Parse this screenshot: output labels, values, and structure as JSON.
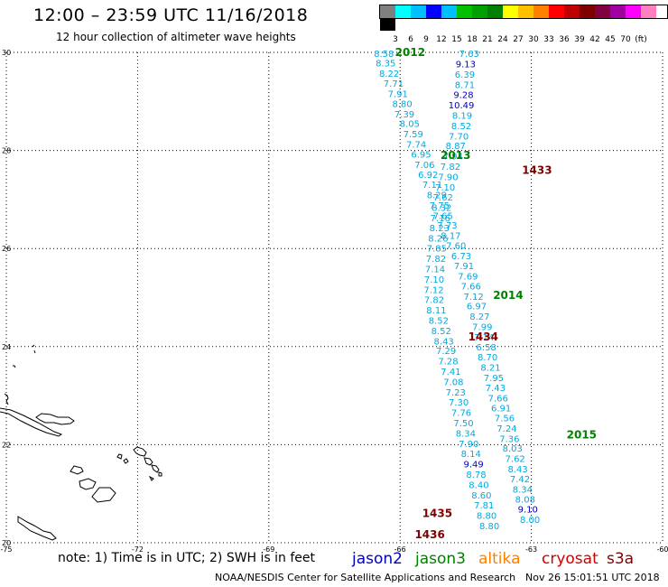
{
  "title": "12:00 – 23:59 UTC 11/16/2018",
  "subtitle": "12 hour collection of altimeter wave heights",
  "colorbar": {
    "colors": [
      "#808080",
      "#00ffff",
      "#00bfff",
      "#0000ff",
      "#00bfff",
      "#00c000",
      "#00a000",
      "#008000",
      "#ffff00",
      "#ffc000",
      "#ff8000",
      "#ff0000",
      "#c00000",
      "#800000",
      "#800040",
      "#a000a0",
      "#ff00ff",
      "#ff80c0",
      "#000000"
    ],
    "labels": [
      "3",
      "6",
      "9",
      "12",
      "15",
      "18",
      "21",
      "24",
      "27",
      "30",
      "33",
      "36",
      "39",
      "42",
      "45",
      "70",
      "(ft)"
    ]
  },
  "axes": {
    "x_labels": [
      "-75",
      "-72",
      "-69",
      "-66",
      "-63",
      "-60"
    ],
    "y_labels": [
      "30",
      "28",
      "26",
      "24",
      "22",
      "20"
    ]
  },
  "note": "note:  1) Time is in UTC;  2) SWH is in feet",
  "satellites": [
    {
      "name": "jason2",
      "color": "#0000c0"
    },
    {
      "name": "jason3",
      "color": "#008000"
    },
    {
      "name": "altika",
      "color": "#ff8000"
    },
    {
      "name": "cryosat",
      "color": "#d00000"
    },
    {
      "name": "s3a",
      "color": "#800000"
    }
  ],
  "credit": "NOAA/NESDIS Center for Satellite Applications and Research",
  "timestamp": "Nov 26 15:01:51 UTC 2018",
  "time_labels": [
    {
      "text": "2012",
      "lon": -65.77,
      "lat": 30.0,
      "color": "#008000"
    },
    {
      "text": "2013",
      "lon": -64.73,
      "lat": 27.9,
      "color": "#008000"
    },
    {
      "text": "1433",
      "lon": -62.87,
      "lat": 27.6,
      "color": "#800000"
    },
    {
      "text": "2014",
      "lon": -63.53,
      "lat": 25.05,
      "color": "#008000"
    },
    {
      "text": "1434",
      "lon": -64.1,
      "lat": 24.2,
      "color": "#800000"
    },
    {
      "text": "2015",
      "lon": -61.85,
      "lat": 22.2,
      "color": "#008000"
    },
    {
      "text": "1435",
      "lon": -65.15,
      "lat": 20.6,
      "color": "#800000"
    },
    {
      "text": "1436",
      "lon": -65.32,
      "lat": 20.17,
      "color": "#800000"
    }
  ],
  "tracks": [
    {
      "satellite": "jason3",
      "points": [
        {
          "v": "8.58",
          "lon": -66.37,
          "lat": 29.98
        },
        {
          "v": "8.35",
          "lon": -66.33,
          "lat": 29.79
        },
        {
          "v": "8.22",
          "lon": -66.25,
          "lat": 29.58
        },
        {
          "v": "7.71",
          "lon": -66.15,
          "lat": 29.37
        },
        {
          "v": "7.91",
          "lon": -66.05,
          "lat": 29.16
        },
        {
          "v": "8.80",
          "lon": -65.95,
          "lat": 28.96
        },
        {
          "v": "7.39",
          "lon": -65.9,
          "lat": 28.75
        },
        {
          "v": "8.05",
          "lon": -65.78,
          "lat": 28.55
        },
        {
          "v": "7.59",
          "lon": -65.7,
          "lat": 28.34
        },
        {
          "v": "7.74",
          "lon": -65.63,
          "lat": 28.13
        },
        {
          "v": "6.95",
          "lon": -65.52,
          "lat": 27.93
        },
        {
          "v": "7.06",
          "lon": -65.44,
          "lat": 27.72
        },
        {
          "v": "6.92",
          "lon": -65.36,
          "lat": 27.51
        },
        {
          "v": "7.11",
          "lon": -65.26,
          "lat": 27.31
        },
        {
          "v": "8.29",
          "lon": -65.16,
          "lat": 27.1
        },
        {
          "v": "7.75",
          "lon": -65.1,
          "lat": 26.89
        },
        {
          "v": "7.65",
          "lon": -65.02,
          "lat": 26.68
        },
        {
          "v": "7.73",
          "lon": -64.92,
          "lat": 26.48
        },
        {
          "v": "8.17",
          "lon": -64.84,
          "lat": 26.27
        },
        {
          "v": "7.60",
          "lon": -64.72,
          "lat": 26.07
        },
        {
          "v": "6.73",
          "lon": -64.6,
          "lat": 25.86
        },
        {
          "v": "7.91",
          "lon": -64.54,
          "lat": 25.65
        },
        {
          "v": "7.69",
          "lon": -64.45,
          "lat": 25.44
        },
        {
          "v": "7.66",
          "lon": -64.38,
          "lat": 25.24
        },
        {
          "v": "7.12",
          "lon": -64.32,
          "lat": 25.03
        },
        {
          "v": "6.97",
          "lon": -64.25,
          "lat": 24.83
        },
        {
          "v": "8.27",
          "lon": -64.18,
          "lat": 24.62
        },
        {
          "v": "7.99",
          "lon": -64.12,
          "lat": 24.41
        },
        {
          "v": "7.14",
          "lon": -64.08,
          "lat": 24.2
        },
        {
          "v": "6.58",
          "lon": -64.03,
          "lat": 24.0
        },
        {
          "v": "8.70",
          "lon": -64.0,
          "lat": 23.79
        },
        {
          "v": "8.21",
          "lon": -63.93,
          "lat": 23.58
        },
        {
          "v": "7.95",
          "lon": -63.86,
          "lat": 23.37
        },
        {
          "v": "7.43",
          "lon": -63.82,
          "lat": 23.17
        },
        {
          "v": "7.66",
          "lon": -63.76,
          "lat": 22.96
        },
        {
          "v": "6.91",
          "lon": -63.69,
          "lat": 22.75
        },
        {
          "v": "7.56",
          "lon": -63.61,
          "lat": 22.55
        },
        {
          "v": "7.24",
          "lon": -63.56,
          "lat": 22.34
        },
        {
          "v": "7.36",
          "lon": -63.5,
          "lat": 22.13
        },
        {
          "v": "8.03",
          "lon": -63.43,
          "lat": 21.93
        },
        {
          "v": "7.62",
          "lon": -63.37,
          "lat": 21.72
        },
        {
          "v": "8.43",
          "lon": -63.31,
          "lat": 21.51
        },
        {
          "v": "7.42",
          "lon": -63.26,
          "lat": 21.31
        },
        {
          "v": "8.34",
          "lon": -63.2,
          "lat": 21.1
        },
        {
          "v": "8.08",
          "lon": -63.14,
          "lat": 20.89
        },
        {
          "v": "9.10",
          "lon": -63.08,
          "lat": 20.69
        },
        {
          "v": "8.00",
          "lon": -63.03,
          "lat": 20.48
        }
      ]
    },
    {
      "satellite": "jason3",
      "points": [
        {
          "v": "7.63",
          "lon": -64.42,
          "lat": 29.98
        },
        {
          "v": "9.13",
          "lon": -64.5,
          "lat": 29.77
        },
        {
          "v": "6.39",
          "lon": -64.52,
          "lat": 29.56
        },
        {
          "v": "8.71",
          "lon": -64.52,
          "lat": 29.35
        },
        {
          "v": "9.28",
          "lon": -64.55,
          "lat": 29.14
        },
        {
          "v": "10.49",
          "lon": -64.6,
          "lat": 28.93
        },
        {
          "v": "8.19",
          "lon": -64.58,
          "lat": 28.72
        },
        {
          "v": "8.52",
          "lon": -64.6,
          "lat": 28.51
        },
        {
          "v": "7.70",
          "lon": -64.66,
          "lat": 28.3
        },
        {
          "v": "8.87",
          "lon": -64.73,
          "lat": 28.1
        },
        {
          "v": "7.94",
          "lon": -64.79,
          "lat": 27.89
        },
        {
          "v": "7.82",
          "lon": -64.85,
          "lat": 27.68
        },
        {
          "v": "7.90",
          "lon": -64.9,
          "lat": 27.47
        },
        {
          "v": "7.10",
          "lon": -64.97,
          "lat": 27.26
        },
        {
          "v": "7.62",
          "lon": -65.02,
          "lat": 27.05
        },
        {
          "v": "8.32",
          "lon": -65.05,
          "lat": 26.84
        },
        {
          "v": "7.16",
          "lon": -65.08,
          "lat": 26.63
        },
        {
          "v": "8.23",
          "lon": -65.1,
          "lat": 26.43
        },
        {
          "v": "8.26",
          "lon": -65.13,
          "lat": 26.22
        },
        {
          "v": "7.85",
          "lon": -65.16,
          "lat": 26.01
        },
        {
          "v": "7.82",
          "lon": -65.18,
          "lat": 25.8
        },
        {
          "v": "7.14",
          "lon": -65.2,
          "lat": 25.59
        },
        {
          "v": "7.10",
          "lon": -65.22,
          "lat": 25.38
        },
        {
          "v": "7.12",
          "lon": -65.23,
          "lat": 25.17
        },
        {
          "v": "7.82",
          "lon": -65.22,
          "lat": 24.96
        },
        {
          "v": "8.11",
          "lon": -65.17,
          "lat": 24.75
        },
        {
          "v": "8.52",
          "lon": -65.12,
          "lat": 24.54
        },
        {
          "v": "8.52",
          "lon": -65.06,
          "lat": 24.33
        },
        {
          "v": "8.43",
          "lon": -65.0,
          "lat": 24.12
        },
        {
          "v": "7.29",
          "lon": -64.95,
          "lat": 23.92
        },
        {
          "v": "7.28",
          "lon": -64.9,
          "lat": 23.71
        },
        {
          "v": "7.41",
          "lon": -64.84,
          "lat": 23.5
        },
        {
          "v": "7.08",
          "lon": -64.78,
          "lat": 23.29
        },
        {
          "v": "7.23",
          "lon": -64.73,
          "lat": 23.08
        },
        {
          "v": "7.30",
          "lon": -64.66,
          "lat": 22.87
        },
        {
          "v": "7.76",
          "lon": -64.6,
          "lat": 22.66
        },
        {
          "v": "7.50",
          "lon": -64.55,
          "lat": 22.45
        },
        {
          "v": "8.34",
          "lon": -64.5,
          "lat": 22.24
        },
        {
          "v": "7.90",
          "lon": -64.43,
          "lat": 22.03
        },
        {
          "v": "8.14",
          "lon": -64.38,
          "lat": 21.82
        },
        {
          "v": "9.49",
          "lon": -64.32,
          "lat": 21.61
        },
        {
          "v": "8.78",
          "lon": -64.26,
          "lat": 21.4
        },
        {
          "v": "8.40",
          "lon": -64.2,
          "lat": 21.19
        },
        {
          "v": "8.60",
          "lon": -64.14,
          "lat": 20.98
        },
        {
          "v": "7.81",
          "lon": -64.08,
          "lat": 20.77
        },
        {
          "v": "8.80",
          "lon": -64.02,
          "lat": 20.56
        },
        {
          "v": "8.80",
          "lon": -63.96,
          "lat": 20.35
        }
      ]
    }
  ]
}
